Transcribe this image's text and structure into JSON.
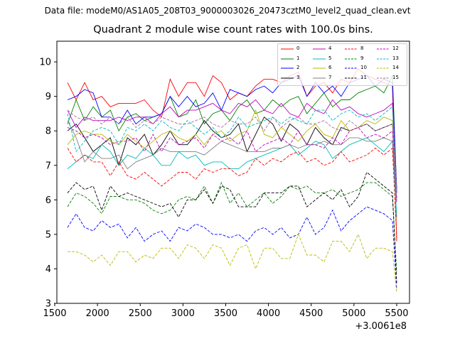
{
  "suptitle": "Data file: modeM0/AS1A05_208T03_9000003026_20473cztM0_level2_quad_clean.evt",
  "chart_data": {
    "type": "line",
    "title": "Quadrant 2 module wise count rates with 100.0s bins.",
    "xlabel": "",
    "ylabel": "",
    "x_offset_label": "+3.0061e8",
    "xlim": [
      1525,
      5650
    ],
    "ylim": [
      3,
      10.6
    ],
    "x_ticks": [
      1500,
      2000,
      2500,
      3000,
      3500,
      4000,
      4500,
      5000,
      5500
    ],
    "y_ticks": [
      3,
      4,
      5,
      6,
      7,
      8,
      9,
      10
    ],
    "grid": false,
    "legend_position": "top-right",
    "x": [
      1650,
      1750,
      1850,
      1950,
      2050,
      2150,
      2250,
      2350,
      2450,
      2550,
      2650,
      2750,
      2850,
      2950,
      3050,
      3150,
      3250,
      3350,
      3450,
      3550,
      3650,
      3750,
      3850,
      3950,
      4050,
      4150,
      4250,
      4350,
      4450,
      4550,
      4650,
      4750,
      4850,
      4950,
      5050,
      5150,
      5250,
      5350,
      5450,
      5500
    ],
    "series": [
      {
        "name": "0",
        "color": "#ff0000",
        "dash": "solid",
        "values": [
          9.4,
          8.9,
          9.4,
          8.9,
          9.0,
          8.7,
          8.8,
          8.8,
          8.8,
          8.9,
          8.6,
          8.4,
          9.5,
          9.0,
          9.4,
          9.4,
          9.0,
          9.6,
          9.4,
          8.9,
          9.1,
          9.0,
          9.3,
          9.5,
          9.5,
          9.4,
          9.6,
          9.7,
          9.0,
          9.3,
          9.4,
          9.1,
          9.5,
          9.4,
          9.8,
          9.6,
          9.5,
          9.4,
          9.3,
          4.8
        ]
      },
      {
        "name": "1",
        "color": "#008000",
        "dash": "solid",
        "values": [
          8.2,
          8.9,
          8.3,
          8.7,
          8.4,
          8.6,
          8.0,
          8.4,
          8.5,
          8.3,
          8.4,
          8.5,
          9.0,
          8.4,
          8.5,
          8.9,
          8.2,
          8.5,
          8.6,
          8.3,
          8.7,
          8.9,
          8.5,
          8.6,
          8.9,
          8.7,
          8.9,
          9.0,
          8.5,
          8.8,
          9.1,
          8.7,
          8.9,
          8.9,
          9.1,
          9.2,
          9.3,
          9.1,
          9.6,
          6.3
        ]
      },
      {
        "name": "2",
        "color": "#0000ff",
        "dash": "solid",
        "values": [
          8.9,
          9.0,
          9.2,
          9.1,
          8.4,
          8.4,
          8.2,
          8.6,
          8.2,
          8.4,
          8.4,
          8.5,
          9.0,
          8.7,
          9.0,
          8.7,
          8.8,
          9.1,
          8.6,
          9.2,
          9.1,
          9.0,
          9.2,
          9.3,
          9.1,
          9.4,
          9.5,
          9.6,
          9.0,
          9.4,
          9.1,
          9.3,
          9.0,
          9.4,
          9.5,
          9.6,
          9.3,
          9.5,
          9.4,
          6.2
        ]
      },
      {
        "name": "3",
        "color": "#000000",
        "dash": "solid",
        "values": [
          8.0,
          8.2,
          7.8,
          7.4,
          7.6,
          7.8,
          7.0,
          7.8,
          7.6,
          7.9,
          7.3,
          7.6,
          8.0,
          7.6,
          7.6,
          7.9,
          8.3,
          8.0,
          7.8,
          7.9,
          8.2,
          7.4,
          7.9,
          8.4,
          8.2,
          7.7,
          8.2,
          8.0,
          7.6,
          8.1,
          7.8,
          7.6,
          8.1,
          8.0,
          8.1,
          8.2,
          8.0,
          8.1,
          8.2,
          6.0
        ]
      },
      {
        "name": "4",
        "color": "#c000c0",
        "dash": "solid",
        "values": [
          8.6,
          8.1,
          8.4,
          8.3,
          8.3,
          8.3,
          8.4,
          8.3,
          8.4,
          8.4,
          8.2,
          8.5,
          8.7,
          8.4,
          8.6,
          8.6,
          8.7,
          8.8,
          8.6,
          8.5,
          8.8,
          8.7,
          8.9,
          8.6,
          8.5,
          8.8,
          8.5,
          8.4,
          8.8,
          8.6,
          8.5,
          8.9,
          8.6,
          8.7,
          8.5,
          8.4,
          8.5,
          8.6,
          8.8,
          6.3
        ]
      },
      {
        "name": "5",
        "color": "#00bbbb",
        "dash": "solid",
        "values": [
          6.9,
          7.1,
          7.3,
          7.2,
          7.6,
          7.4,
          7.0,
          7.3,
          7.2,
          7.5,
          7.3,
          7.0,
          7.0,
          7.4,
          7.2,
          7.3,
          7.0,
          7.1,
          7.1,
          6.9,
          6.9,
          7.1,
          7.2,
          7.3,
          7.4,
          7.5,
          7.6,
          7.3,
          7.5,
          7.7,
          7.6,
          7.2,
          7.4,
          7.6,
          7.7,
          7.8,
          7.6,
          7.4,
          7.7,
          5.5
        ]
      },
      {
        "name": "6",
        "color": "#bbbb00",
        "dash": "solid",
        "values": [
          7.6,
          7.9,
          8.0,
          7.9,
          7.9,
          7.7,
          7.6,
          7.9,
          7.7,
          7.5,
          7.7,
          7.9,
          8.0,
          7.8,
          7.7,
          7.9,
          7.6,
          7.9,
          8.0,
          7.7,
          7.9,
          8.0,
          8.6,
          7.9,
          7.8,
          8.1,
          7.9,
          7.7,
          8.0,
          8.2,
          7.9,
          7.8,
          8.3,
          8.0,
          8.1,
          8.3,
          8.2,
          8.4,
          8.3,
          6.0
        ]
      },
      {
        "name": "7",
        "color": "#808080",
        "dash": "solid",
        "values": [
          8.3,
          7.8,
          7.1,
          7.4,
          7.2,
          7.2,
          7.3,
          6.9,
          7.1,
          7.2,
          7.3,
          7.5,
          7.4,
          7.4,
          7.4,
          7.4,
          7.3,
          7.5,
          7.7,
          7.6,
          7.5,
          7.4,
          7.4,
          7.4,
          7.5,
          7.5,
          7.6,
          7.5,
          7.6,
          7.6,
          7.7,
          7.6,
          7.6,
          7.8,
          7.8,
          7.7,
          7.7,
          7.8,
          7.7,
          6.0
        ]
      },
      {
        "name": "8",
        "color": "#ff0000",
        "dash": "dashed",
        "values": [
          7.5,
          7.1,
          7.3,
          7.1,
          7.1,
          6.7,
          7.1,
          6.7,
          6.6,
          6.8,
          6.6,
          6.4,
          6.6,
          6.8,
          6.8,
          6.6,
          6.9,
          6.8,
          6.9,
          6.9,
          6.7,
          6.8,
          7.2,
          7.0,
          7.2,
          7.1,
          7.3,
          7.4,
          7.1,
          7.2,
          7.0,
          7.1,
          7.4,
          7.1,
          7.2,
          7.3,
          7.5,
          7.3,
          7.5,
          4.9
        ]
      },
      {
        "name": "9",
        "color": "#008000",
        "dash": "dashed",
        "values": [
          5.8,
          6.2,
          6.1,
          5.9,
          5.6,
          6.1,
          6.1,
          6.0,
          6.0,
          5.9,
          5.7,
          5.6,
          5.7,
          6.0,
          6.1,
          6.0,
          6.4,
          5.9,
          6.5,
          5.9,
          6.2,
          5.8,
          6.0,
          6.2,
          5.9,
          6.1,
          6.4,
          6.3,
          6.4,
          6.2,
          6.2,
          6.3,
          6.1,
          6.2,
          6.3,
          6.5,
          6.5,
          6.3,
          6.1,
          3.9
        ]
      },
      {
        "name": "10",
        "color": "#0000ff",
        "dash": "dashed",
        "values": [
          5.2,
          5.6,
          5.2,
          5.1,
          5.4,
          5.2,
          5.3,
          4.9,
          5.2,
          4.8,
          5.0,
          5.1,
          4.8,
          5.2,
          5.1,
          5.3,
          5.2,
          5.0,
          5.0,
          4.9,
          5.0,
          4.8,
          5.1,
          5.2,
          5.0,
          5.2,
          4.9,
          5.0,
          5.5,
          5.0,
          5.2,
          5.7,
          5.1,
          5.4,
          5.6,
          5.8,
          5.7,
          5.6,
          5.4,
          3.4
        ]
      },
      {
        "name": "11",
        "color": "#000000",
        "dash": "dashed",
        "values": [
          6.2,
          6.5,
          6.3,
          6.4,
          5.7,
          6.4,
          6.1,
          6.2,
          6.1,
          6.0,
          5.9,
          5.8,
          5.9,
          5.5,
          6.0,
          6.0,
          6.3,
          5.9,
          6.4,
          6.3,
          5.8,
          5.8,
          5.8,
          6.2,
          6.2,
          6.2,
          6.4,
          6.4,
          5.8,
          6.0,
          6.2,
          6.0,
          6.3,
          5.8,
          6.1,
          6.8,
          6.6,
          6.4,
          6.2,
          3.6
        ]
      },
      {
        "name": "12",
        "color": "#c000c0",
        "dash": "dashed",
        "values": [
          8.1,
          8.0,
          7.8,
          7.9,
          7.8,
          7.6,
          7.7,
          7.7,
          7.8,
          7.4,
          7.9,
          7.4,
          7.8,
          7.6,
          7.7,
          7.8,
          7.5,
          7.9,
          7.7,
          7.8,
          7.6,
          8.0,
          7.4,
          7.6,
          7.7,
          7.8,
          7.6,
          8.0,
          7.6,
          7.6,
          7.5,
          7.8,
          7.6,
          8.0,
          8.1,
          7.8,
          7.9,
          7.8,
          8.0,
          5.9
        ]
      },
      {
        "name": "13",
        "color": "#00bbbb",
        "dash": "dashed",
        "values": [
          8.5,
          7.4,
          7.7,
          8.0,
          8.1,
          8.0,
          7.6,
          8.1,
          8.0,
          8.2,
          8.0,
          8.3,
          8.1,
          8.0,
          8.3,
          8.1,
          7.9,
          8.1,
          7.8,
          8.0,
          8.4,
          8.1,
          8.2,
          8.3,
          8.4,
          8.2,
          8.4,
          8.3,
          8.2,
          8.6,
          8.6,
          8.3,
          8.5,
          8.6,
          8.4,
          8.5,
          8.3,
          8.5,
          8.7,
          6.2
        ]
      },
      {
        "name": "14",
        "color": "#bbbb00",
        "dash": "dashed",
        "values": [
          4.5,
          4.5,
          4.4,
          4.2,
          4.4,
          4.1,
          4.5,
          4.5,
          4.2,
          4.4,
          4.3,
          4.6,
          4.6,
          4.3,
          4.7,
          4.6,
          4.3,
          4.7,
          4.6,
          4.1,
          4.6,
          4.7,
          4.0,
          4.6,
          4.6,
          4.3,
          4.3,
          5.0,
          4.4,
          4.4,
          4.2,
          4.8,
          4.8,
          4.5,
          5.0,
          4.3,
          4.6,
          4.6,
          4.5,
          3.3
        ]
      },
      {
        "name": "15",
        "color": "#a070a0",
        "dash": "dashed",
        "values": [
          8.6,
          8.4,
          8.3,
          8.4,
          8.2,
          8.4,
          8.2,
          8.4,
          8.1,
          8.3,
          8.2,
          8.4,
          8.3,
          8.2,
          8.2,
          8.3,
          8.4,
          8.2,
          8.1,
          8.3,
          8.2,
          8.2,
          8.4,
          8.0,
          8.4,
          8.1,
          8.3,
          8.4,
          8.2,
          8.2,
          8.3,
          8.1,
          8.0,
          8.3,
          8.1,
          8.2,
          8.0,
          8.1,
          8.2,
          6.1
        ]
      }
    ]
  }
}
